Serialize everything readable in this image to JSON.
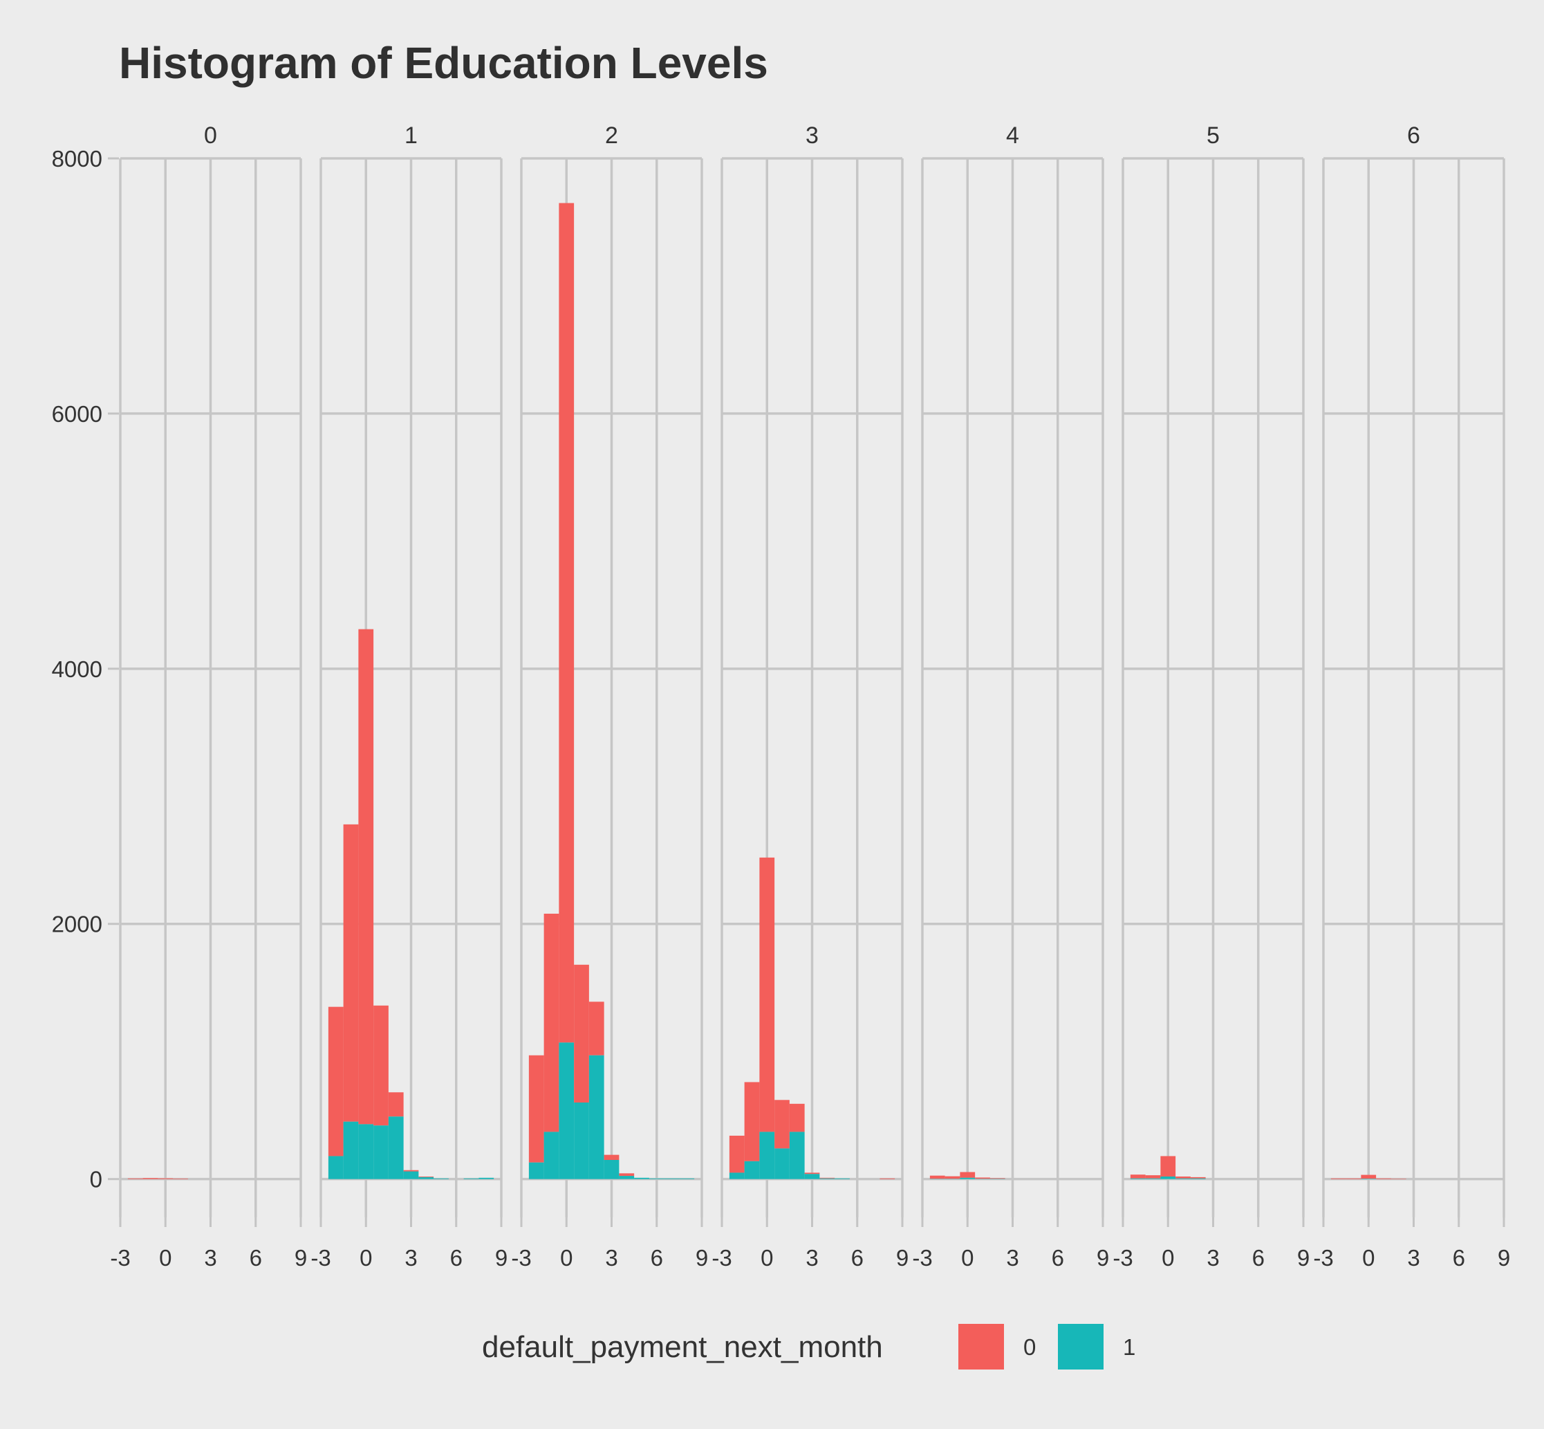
{
  "chart_data": {
    "type": "bar",
    "title": "Histogram of Education Levels",
    "facet_labels": [
      "0",
      "1",
      "2",
      "3",
      "4",
      "5",
      "6"
    ],
    "x_tick_labels": [
      "-3",
      "0",
      "3",
      "6",
      "9"
    ],
    "x_ticks": [
      -3,
      0,
      3,
      6,
      9
    ],
    "xlim": [
      -3,
      9
    ],
    "y_tick_labels": [
      "0",
      "2000",
      "4000",
      "6000",
      "8000"
    ],
    "y_ticks": [
      0,
      2000,
      4000,
      6000,
      8000
    ],
    "ylim": [
      -300,
      8000
    ],
    "grid": true,
    "stacked": true,
    "bin_centers": [
      -2,
      -1,
      0,
      1,
      2,
      3,
      4,
      5,
      6,
      7,
      8
    ],
    "legend": {
      "title": "default_payment_next_month",
      "position": "bottom",
      "entries": [
        {
          "label": "0",
          "color": "#f35e5a"
        },
        {
          "label": "1",
          "color": "#17b7b8"
        }
      ]
    },
    "facets": [
      {
        "label": "0",
        "series": [
          {
            "name": "0",
            "values": [
              5,
              8,
              6,
              4,
              0,
              0,
              0,
              0,
              0,
              0,
              0
            ]
          },
          {
            "name": "1",
            "values": [
              0,
              0,
              0,
              0,
              0,
              0,
              0,
              0,
              0,
              0,
              0
            ]
          }
        ]
      },
      {
        "label": "1",
        "series": [
          {
            "name": "0",
            "values": [
              1170,
              2330,
              3880,
              940,
              190,
              10,
              5,
              0,
              0,
              0,
              0
            ]
          },
          {
            "name": "1",
            "values": [
              180,
              450,
              430,
              420,
              490,
              60,
              15,
              5,
              0,
              5,
              10
            ]
          }
        ]
      },
      {
        "label": "2",
        "series": [
          {
            "name": "0",
            "values": [
              840,
              1710,
              6580,
              1080,
              420,
              40,
              20,
              0,
              0,
              0,
              0
            ]
          },
          {
            "name": "1",
            "values": [
              130,
              370,
              1070,
              600,
              970,
              150,
              25,
              10,
              5,
              5,
              5
            ]
          }
        ]
      },
      {
        "label": "3",
        "series": [
          {
            "name": "0",
            "values": [
              290,
              620,
              2150,
              380,
              220,
              10,
              5,
              0,
              0,
              0,
              5
            ]
          },
          {
            "name": "1",
            "values": [
              50,
              140,
              370,
              240,
              370,
              40,
              5,
              5,
              0,
              0,
              0
            ]
          }
        ]
      },
      {
        "label": "4",
        "series": [
          {
            "name": "0",
            "values": [
              25,
              20,
              45,
              10,
              5,
              0,
              0,
              0,
              0,
              0,
              0
            ]
          },
          {
            "name": "1",
            "values": [
              2,
              2,
              10,
              2,
              2,
              0,
              0,
              0,
              0,
              0,
              0
            ]
          }
        ]
      },
      {
        "label": "5",
        "series": [
          {
            "name": "0",
            "values": [
              30,
              25,
              160,
              15,
              10,
              0,
              0,
              0,
              0,
              0,
              0
            ]
          },
          {
            "name": "1",
            "values": [
              5,
              5,
              20,
              5,
              5,
              0,
              0,
              0,
              0,
              0,
              0
            ]
          }
        ]
      },
      {
        "label": "6",
        "series": [
          {
            "name": "0",
            "values": [
              5,
              5,
              30,
              5,
              3,
              0,
              0,
              0,
              0,
              0,
              0
            ]
          },
          {
            "name": "1",
            "values": [
              0,
              0,
              3,
              0,
              0,
              0,
              0,
              0,
              0,
              0,
              0
            ]
          }
        ]
      }
    ]
  }
}
